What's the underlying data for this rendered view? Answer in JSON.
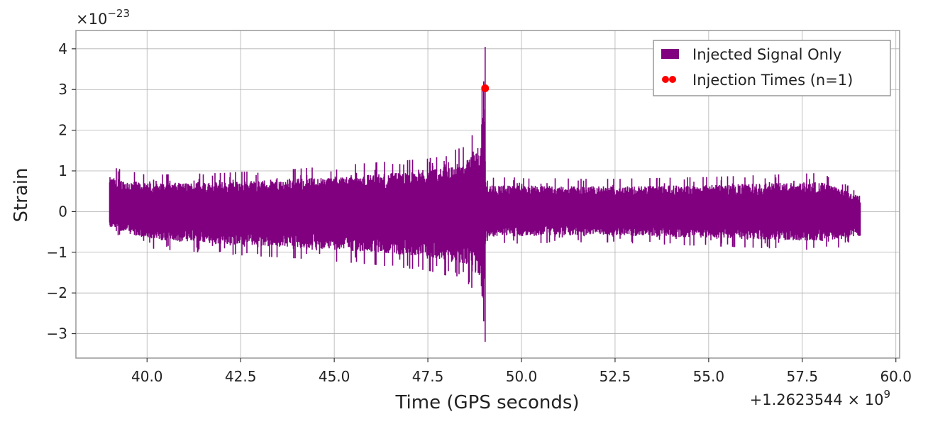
{
  "chart_data": {
    "type": "line",
    "title": "",
    "xlabel": "Time (GPS seconds)",
    "ylabel": "Strain",
    "x_offset_label": "+1.2623544 × 10",
    "x_offset_exp": "9",
    "y_scale_label": "×10",
    "y_scale_exp": "−23",
    "xlim": [
      38.1,
      60.1
    ],
    "ylim": [
      -3.6,
      4.45
    ],
    "x_ticks": [
      40.0,
      42.5,
      45.0,
      47.5,
      50.0,
      52.5,
      55.0,
      57.5,
      60.0
    ],
    "x_tick_labels": [
      "40.0",
      "42.5",
      "45.0",
      "47.5",
      "50.0",
      "52.5",
      "55.0",
      "57.5",
      "60.0"
    ],
    "y_ticks": [
      -3,
      -2,
      -1,
      0,
      1,
      2,
      3,
      4
    ],
    "y_tick_labels": [
      "−3",
      "−2",
      "−1",
      "0",
      "1",
      "2",
      "3",
      "4"
    ],
    "grid": true,
    "legend_position": "top-right",
    "series": [
      {
        "name": "Injected Signal Only",
        "kind": "line",
        "color": "#800080",
        "x_range": [
          39.0,
          59.05
        ],
        "envelope": {
          "x": [
            39.0,
            40.0,
            42.0,
            44.0,
            46.0,
            47.5,
            48.5,
            48.9,
            49.0,
            49.05,
            49.1,
            52.0,
            55.0,
            58.0,
            59.05
          ],
          "upper": [
            1.1,
            0.9,
            0.95,
            1.05,
            1.2,
            1.3,
            1.6,
            2.2,
            4.05,
            1.0,
            0.85,
            0.8,
            0.85,
            0.95,
            0.5
          ],
          "lower": [
            -0.5,
            -0.9,
            -1.05,
            -1.15,
            -1.3,
            -1.45,
            -1.7,
            -2.1,
            -3.2,
            -1.0,
            -0.8,
            -0.75,
            -0.85,
            -0.95,
            -0.8
          ]
        }
      },
      {
        "name": "Injection Times (n=1)",
        "kind": "scatter",
        "color": "#ff0000",
        "x": [
          49.03
        ],
        "y": [
          3.03
        ]
      }
    ]
  }
}
